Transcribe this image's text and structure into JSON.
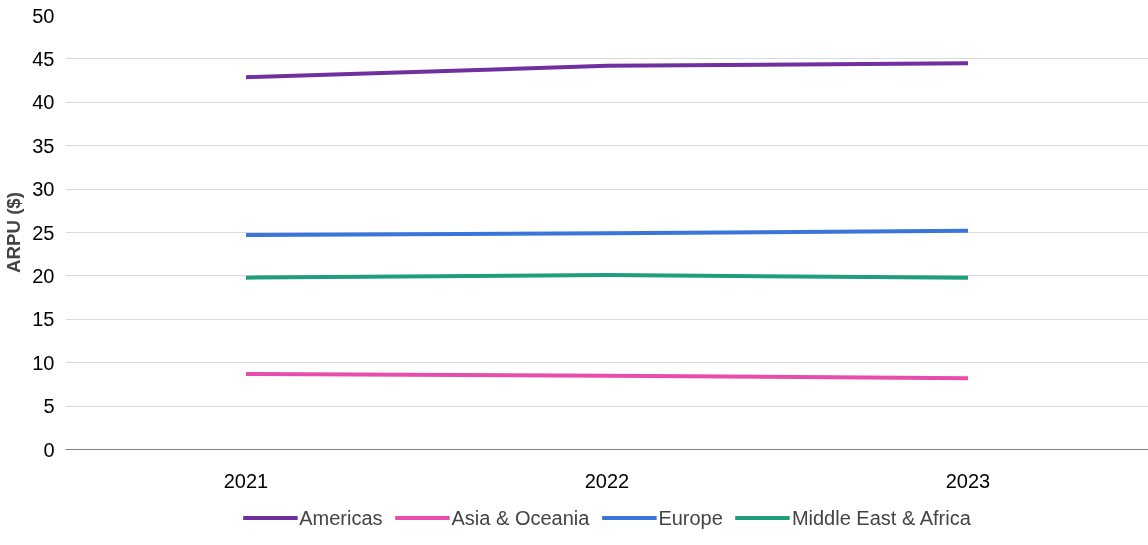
{
  "chart_data": {
    "type": "line",
    "ylabel": "ARPU ($)",
    "categories": [
      "2021",
      "2022",
      "2023"
    ],
    "series": [
      {
        "name": "Americas",
        "color": "#7030a0",
        "values": [
          42.9,
          44.2,
          44.5
        ]
      },
      {
        "name": "Asia & Oceania",
        "color": "#e84cad",
        "values": [
          8.7,
          8.5,
          8.2
        ]
      },
      {
        "name": "Europe",
        "color": "#3a75dc",
        "values": [
          24.7,
          24.9,
          25.2
        ]
      },
      {
        "name": "Middle East & Africa",
        "color": "#1f9e7e",
        "values": [
          19.8,
          20.1,
          19.8
        ]
      }
    ],
    "ylim": [
      0,
      50
    ],
    "yticks": [
      0,
      5,
      10,
      15,
      20,
      25,
      30,
      35,
      40,
      45,
      50
    ],
    "grid": "y",
    "legend": "bottom",
    "marker": "none",
    "line_style": "solid"
  }
}
